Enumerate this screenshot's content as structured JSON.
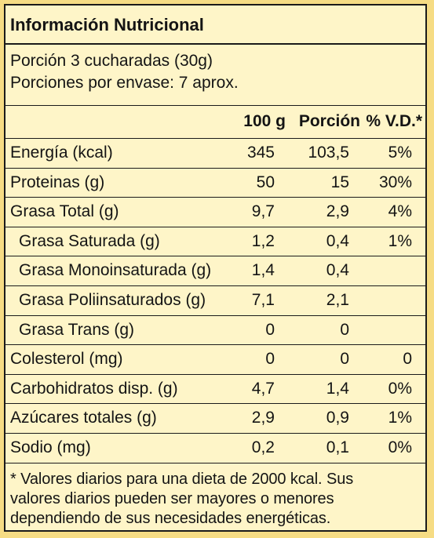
{
  "title": "Información Nutricional",
  "serving": {
    "portion": "Porción 3 cucharadas (30g)",
    "per_container": "Porciones por envase: 7 aprox."
  },
  "columns": {
    "per100": "100 g",
    "portion": "Porción",
    "dv": "% V.D.*"
  },
  "rows": [
    {
      "name": "Energía (kcal)",
      "per100": "345",
      "portion": "103,5",
      "dv": "5%"
    },
    {
      "name": "Proteinas (g)",
      "per100": "50",
      "portion": "15",
      "dv": "30%"
    },
    {
      "name": "Grasa Total (g)",
      "per100": "9,7",
      "portion": "2,9",
      "dv": "4%"
    },
    {
      "name": "Grasa Saturada (g)",
      "per100": "1,2",
      "portion": "0,4",
      "dv": "1%"
    },
    {
      "name": "Grasa Monoinsaturada (g)",
      "per100": "1,4",
      "portion": "0,4",
      "dv": ""
    },
    {
      "name": "Grasa Poliinsaturados (g)",
      "per100": "7,1",
      "portion": "2,1",
      "dv": ""
    },
    {
      "name": "Grasa Trans (g)",
      "per100": "0",
      "portion": "0",
      "dv": ""
    },
    {
      "name": "Colesterol (mg)",
      "per100": "0",
      "portion": "0",
      "dv": "0"
    },
    {
      "name": "Carbohidratos disp. (g)",
      "per100": "4,7",
      "portion": "1,4",
      "dv": "0%"
    },
    {
      "name": "Azúcares totales (g)",
      "per100": "2,9",
      "portion": "0,9",
      "dv": "1%"
    },
    {
      "name": "Sodio (mg)",
      "per100": "0,2",
      "portion": "0,1",
      "dv": "0%"
    }
  ],
  "footnote": {
    "line1": "* Valores diarios para una dieta de 2000 kcal. Sus",
    "line2": "valores diarios pueden ser mayores o menores",
    "line3": "dependiendo de sus necesidades energéticas."
  },
  "colors": {
    "background": "#f6dc84",
    "label": "#fef5c8",
    "ink": "#141414"
  }
}
